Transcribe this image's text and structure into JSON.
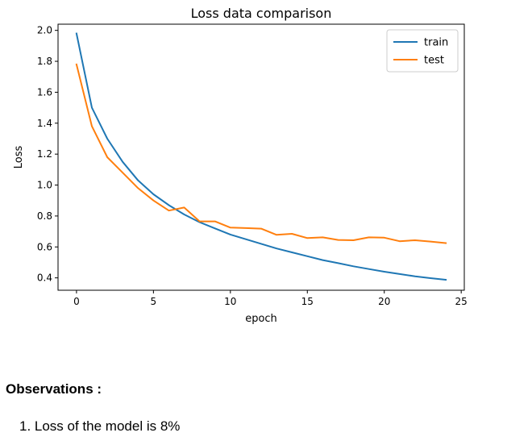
{
  "chart_data": {
    "type": "line",
    "title": "Loss data comparison",
    "xlabel": "epoch",
    "ylabel": "Loss",
    "xlim": [
      -1.2,
      25.2
    ],
    "ylim": [
      0.32,
      2.04
    ],
    "xticks": [
      0,
      5,
      10,
      15,
      20,
      25
    ],
    "yticks": [
      0.4,
      0.6,
      0.8,
      1.0,
      1.2,
      1.4,
      1.6,
      1.8,
      2.0
    ],
    "grid": false,
    "legend_position": "top-right",
    "x": [
      0,
      1,
      2,
      3,
      4,
      5,
      6,
      7,
      8,
      9,
      10,
      11,
      12,
      13,
      14,
      15,
      16,
      17,
      18,
      19,
      20,
      21,
      22,
      23,
      24
    ],
    "series": [
      {
        "name": "train",
        "color": "#1f77b4",
        "values": [
          1.98,
          1.5,
          1.3,
          1.15,
          1.03,
          0.94,
          0.87,
          0.81,
          0.76,
          0.72,
          0.68,
          0.65,
          0.62,
          0.59,
          0.565,
          0.54,
          0.515,
          0.495,
          0.475,
          0.457,
          0.44,
          0.425,
          0.41,
          0.398,
          0.388
        ]
      },
      {
        "name": "test",
        "color": "#ff7f0e",
        "values": [
          1.78,
          1.38,
          1.18,
          1.08,
          0.98,
          0.9,
          0.835,
          0.855,
          0.765,
          0.765,
          0.725,
          0.722,
          0.718,
          0.678,
          0.685,
          0.657,
          0.662,
          0.645,
          0.643,
          0.662,
          0.66,
          0.637,
          0.643,
          0.635,
          0.625
        ]
      }
    ]
  },
  "observations": {
    "heading": "Observations :",
    "items": [
      "1. Loss of the model is 8%"
    ]
  }
}
